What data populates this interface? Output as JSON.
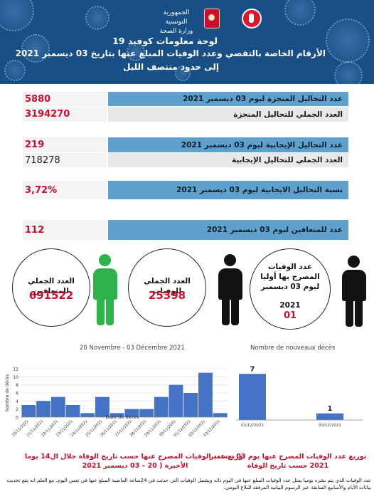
{
  "header": {
    "republic": "الجمهورية التونسية",
    "ministry": "وزارة الصحة",
    "title": "لوحة معلومات كوفيد  19",
    "subtitle": "الأرقام الخاصة بالتقصي وعدد الوفيات المبلغ عنها بتاريخ  03 ديسمبر 2021",
    "subtitle2": "إلى حدود منتصف الليل",
    "emblem_icon": "tunisia-coat-of-arms",
    "logo_icon": "ministry-of-health-logo"
  },
  "stats": {
    "tests_day_label": "عدد التحاليل المنجزة ليوم  03 ديسمبر 2021",
    "tests_day_value": "5880",
    "tests_total_label": "العدد الجملي للتحاليل المنجزة",
    "tests_total_value": "3194270",
    "positive_day_label": "عدد التحاليل الإيجابية ليوم  03 ديسمبر 2021",
    "positive_day_value": "219",
    "positive_total_label": "العدد الجملي للتحاليل الإيجابية",
    "positive_total_value": "718278",
    "rate_label": "نسبة التحاليل الايجابية ليوم 03 ديسمبر 2021",
    "rate_value": "3,72%",
    "recovered_day_label": "عدد للمتعافين ليوم 03 ديسمبر 2021",
    "recovered_day_value": "112"
  },
  "summary": {
    "recovered_total_label": "العدد الجملي للمتعافين",
    "recovered_total_value": "691522",
    "deaths_total_label": "العدد الجملي للوفيات",
    "deaths_total_value": "25398",
    "deaths_day_label": "عدد الوفيات المصرح بها أوليا ليوم 03 ديسمبر",
    "deaths_day_year": "2021",
    "deaths_day_value": "01"
  },
  "colors": {
    "header_bg": "#174f86",
    "accent_blue": "#5da1cc",
    "alert_red": "#c8102e",
    "recovered_green": "#2db34a",
    "deaths_black": "#111111",
    "bar_blue": "#4472c4"
  },
  "chart_data": [
    {
      "type": "bar",
      "title": "20 Novembre - 03 Décembre 2021",
      "xlabel": "Date de décès",
      "ylabel": "Nombre de décès",
      "ylim": [
        0,
        12
      ],
      "yticks": [
        "0",
        "2",
        "4",
        "6",
        "8",
        "10",
        "12"
      ],
      "categories": [
        "20/11/2021",
        "21/11/2021",
        "22/11/2021",
        "23/11/2021",
        "24/11/2021",
        "25/11/2021",
        "26/11/2021",
        "27/11/2021",
        "28/11/2021",
        "29/11/2021",
        "30/11/2021",
        "01/12/2021",
        "02/12/2021",
        "03/12/2021"
      ],
      "values": [
        3,
        4,
        5,
        3,
        1,
        5,
        1,
        2,
        2,
        5,
        8,
        6,
        11,
        1
      ],
      "grid": true
    },
    {
      "type": "bar",
      "title": "Nombre de nouveaux décès",
      "categories": [
        "02/12/2021",
        "03/12/2021"
      ],
      "values": [
        7,
        1
      ],
      "ylim": [
        0,
        8
      ],
      "data_labels": [
        "7",
        "1"
      ],
      "grid": false
    }
  ],
  "captions": {
    "left": "توزيع عدد الوفيات المصرح عنها حسب تاريخ الوفاة خلال ال14 يوما الأخيرة ( 20 – 03 ديسمبر 2021",
    "right": "توزيع عدد الوفيات المصرح عنها يوم  03 ديسمبر 2021 حسب تاريخ الوفاة"
  },
  "footer": {
    "note": "عدد الوفيات الذي يتم نشره يوميا يمثل عدد الوفيات المبلغ عنها في اليوم ذاته ويشمل الوفيات التي حدثت في 24ساعة الماضية المبلغ عنها في نفس اليوم. مع العلم انه يقع تحديث بيانات الأيام والأسابيع السابقة عبر الرسوم البيانية المرفقة للبلاغ اليومي."
  }
}
